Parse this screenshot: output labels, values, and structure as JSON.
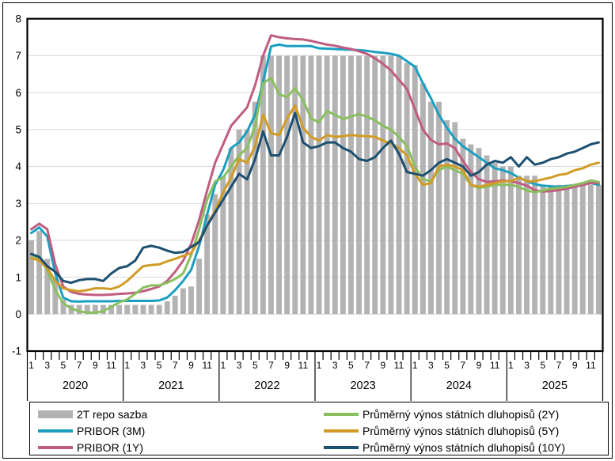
{
  "figure": {
    "background": "#ffffff",
    "border_color": "#000000",
    "gridline_color": "#d9d9d9",
    "axis_color": "#000000"
  },
  "y_axis": {
    "ticks": [
      "8",
      "7",
      "6",
      "5",
      "4",
      "3",
      "2",
      "1",
      "0",
      "-1"
    ],
    "min": -1,
    "max": 8
  },
  "x_axis": {
    "month_labels": [
      "1",
      "3",
      "5",
      "7",
      "9",
      "11"
    ],
    "years": [
      "2020",
      "2021",
      "2022",
      "2023",
      "2024",
      "2025"
    ]
  },
  "legend": {
    "items": [
      {
        "id": "repo",
        "label": "2T repo sazba",
        "color": "#b3b3b3",
        "type": "bar"
      },
      {
        "id": "pribor-3m",
        "label": "PRIBOR (3M)",
        "color": "#1b9fc0",
        "type": "line"
      },
      {
        "id": "pribor-1y",
        "label": "PRIBOR (1Y)",
        "color": "#c05c80",
        "type": "line"
      },
      {
        "id": "bond-2y",
        "label": "Průměrný výnos státních dluhopisů (2Y)",
        "color": "#8abf5f",
        "type": "line"
      },
      {
        "id": "bond-5y",
        "label": "Průměrný výnos státních dluhopisů (5Y)",
        "color": "#d19b26",
        "type": "line"
      },
      {
        "id": "bond-10y",
        "label": "Průměrný výnos státních dluhopisů (10Y)",
        "color": "#1d4f70",
        "type": "line"
      }
    ]
  },
  "chart_data": {
    "type": "bar",
    "subtype": "monthly combo bar+line",
    "x_start": "2020-01",
    "x_end": "2025-12",
    "months_total": 72,
    "ylim": [
      -1,
      8
    ],
    "grid": "horizontal",
    "legend_position": "bottom",
    "bar_series": {
      "name": "2T repo sazba",
      "color": "#b3b3b3",
      "values": [
        2.0,
        2.25,
        1.5,
        1.0,
        0.4,
        0.25,
        0.25,
        0.25,
        0.25,
        0.25,
        0.25,
        0.25,
        0.25,
        0.25,
        0.25,
        0.25,
        0.25,
        0.35,
        0.5,
        0.7,
        0.75,
        1.5,
        2.7,
        3.25,
        3.75,
        4.5,
        5.0,
        5.0,
        5.75,
        7.0,
        7.0,
        7.0,
        7.0,
        7.0,
        7.0,
        7.0,
        7.0,
        7.0,
        7.0,
        7.0,
        7.0,
        7.0,
        7.0,
        7.0,
        7.0,
        7.0,
        7.0,
        6.8,
        6.75,
        6.25,
        5.75,
        5.75,
        5.25,
        5.2,
        4.75,
        4.6,
        4.5,
        4.3,
        4.1,
        4.0,
        4.0,
        3.75,
        3.75,
        3.75,
        3.5,
        3.5,
        3.5,
        3.5,
        3.5,
        3.5,
        3.5,
        3.5
      ]
    },
    "line_series": [
      {
        "id": "pribor-3m",
        "name": "PRIBOR (3M)",
        "color": "#1b9fc0",
        "values": [
          2.2,
          2.35,
          2.1,
          1.1,
          0.45,
          0.35,
          0.34,
          0.35,
          0.35,
          0.35,
          0.35,
          0.36,
          0.36,
          0.36,
          0.36,
          0.36,
          0.37,
          0.45,
          0.65,
          0.9,
          1.2,
          1.85,
          2.7,
          3.5,
          3.9,
          4.5,
          4.65,
          4.95,
          5.4,
          6.3,
          7.25,
          7.3,
          7.26,
          7.26,
          7.26,
          7.26,
          7.2,
          7.19,
          7.18,
          7.17,
          7.16,
          7.15,
          7.13,
          7.1,
          7.08,
          7.05,
          7.0,
          6.85,
          6.7,
          6.25,
          5.85,
          5.4,
          5.05,
          4.75,
          4.55,
          4.4,
          4.25,
          4.1,
          3.95,
          3.9,
          3.82,
          3.7,
          3.6,
          3.52,
          3.48,
          3.46,
          3.45,
          3.47,
          3.5,
          3.52,
          3.55,
          3.5
        ]
      },
      {
        "id": "pribor-1y",
        "name": "PRIBOR (1Y)",
        "color": "#c05c80",
        "values": [
          2.3,
          2.45,
          2.3,
          1.35,
          0.75,
          0.6,
          0.55,
          0.53,
          0.52,
          0.52,
          0.53,
          0.55,
          0.56,
          0.58,
          0.62,
          0.68,
          0.75,
          0.9,
          1.15,
          1.45,
          1.9,
          2.55,
          3.35,
          4.1,
          4.6,
          5.1,
          5.35,
          5.6,
          6.2,
          7.0,
          7.55,
          7.5,
          7.47,
          7.45,
          7.44,
          7.4,
          7.35,
          7.3,
          7.27,
          7.22,
          7.18,
          7.12,
          7.05,
          6.93,
          6.78,
          6.6,
          6.35,
          6.1,
          5.55,
          5.0,
          4.72,
          4.6,
          4.62,
          4.5,
          4.15,
          3.85,
          3.65,
          3.58,
          3.6,
          3.62,
          3.6,
          3.55,
          3.48,
          3.36,
          3.32,
          3.33,
          3.36,
          3.4,
          3.45,
          3.5,
          3.55,
          3.55
        ]
      },
      {
        "id": "bond-2y",
        "name": "Průměrný výnos státních dluhopisů (2Y)",
        "color": "#8abf5f",
        "values": [
          1.62,
          1.5,
          1.2,
          0.65,
          0.3,
          0.15,
          0.08,
          0.04,
          0.04,
          0.08,
          0.2,
          0.32,
          0.4,
          0.55,
          0.72,
          0.78,
          0.78,
          0.85,
          0.95,
          1.1,
          1.6,
          2.3,
          3.1,
          3.6,
          3.7,
          4.0,
          4.3,
          4.5,
          5.1,
          6.25,
          6.4,
          5.95,
          5.88,
          6.12,
          5.8,
          5.3,
          5.2,
          5.5,
          5.4,
          5.28,
          5.35,
          5.42,
          5.35,
          5.25,
          5.1,
          5.0,
          4.8,
          4.55,
          4.0,
          3.65,
          3.6,
          3.9,
          4.0,
          3.9,
          3.8,
          3.5,
          3.42,
          3.45,
          3.5,
          3.5,
          3.5,
          3.45,
          3.35,
          3.3,
          3.35,
          3.4,
          3.42,
          3.45,
          3.5,
          3.55,
          3.62,
          3.58
        ]
      },
      {
        "id": "bond-5y",
        "name": "Průměrný výnos státních dluhopisů (5Y)",
        "color": "#d19b26",
        "values": [
          1.52,
          1.45,
          1.25,
          0.9,
          0.7,
          0.65,
          0.62,
          0.65,
          0.7,
          0.7,
          0.68,
          0.75,
          0.9,
          1.1,
          1.3,
          1.33,
          1.35,
          1.43,
          1.5,
          1.58,
          1.65,
          2.0,
          2.4,
          2.8,
          3.3,
          3.7,
          4.2,
          4.1,
          4.55,
          5.4,
          4.9,
          4.85,
          5.3,
          5.65,
          5.05,
          4.8,
          4.7,
          4.85,
          4.8,
          4.82,
          4.85,
          4.83,
          4.82,
          4.8,
          4.7,
          4.62,
          4.5,
          4.3,
          3.8,
          3.5,
          3.55,
          4.0,
          4.05,
          4.0,
          3.9,
          3.5,
          3.45,
          3.5,
          3.55,
          3.6,
          3.6,
          3.7,
          3.6,
          3.6,
          3.65,
          3.7,
          3.77,
          3.8,
          3.9,
          3.95,
          4.05,
          4.1
        ]
      },
      {
        "id": "bond-10y",
        "name": "Průměrný výnos státních dluhopisů (10Y)",
        "color": "#1d4f70",
        "values": [
          1.63,
          1.55,
          1.3,
          1.15,
          0.9,
          0.85,
          0.92,
          0.95,
          0.95,
          0.9,
          1.1,
          1.25,
          1.3,
          1.45,
          1.8,
          1.85,
          1.8,
          1.72,
          1.66,
          1.68,
          1.82,
          1.95,
          2.4,
          2.75,
          3.1,
          3.45,
          3.8,
          3.65,
          4.2,
          4.95,
          4.3,
          4.3,
          4.8,
          5.45,
          4.65,
          4.5,
          4.55,
          4.65,
          4.65,
          4.5,
          4.4,
          4.2,
          4.15,
          4.25,
          4.5,
          4.7,
          4.35,
          3.85,
          3.8,
          3.75,
          3.9,
          4.1,
          4.2,
          4.1,
          4.0,
          3.75,
          3.85,
          4.05,
          4.15,
          4.1,
          4.25,
          4.0,
          4.25,
          4.05,
          4.1,
          4.2,
          4.25,
          4.35,
          4.4,
          4.5,
          4.6,
          4.65
        ]
      }
    ]
  }
}
